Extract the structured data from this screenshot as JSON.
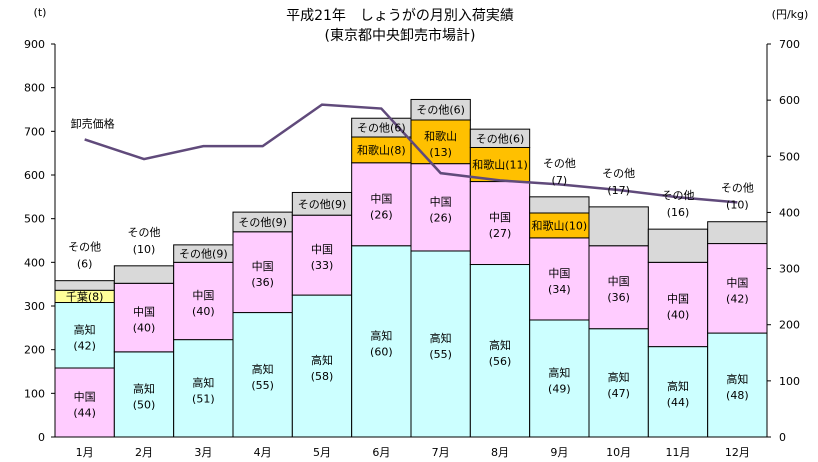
{
  "chart_data": {
    "type": "bar",
    "stacked": true,
    "title": "平成21年　しょうがの月別入荷実績",
    "subtitle": "(東京都中央卸売市場計)",
    "ylabel_left": "(t)",
    "ylabel_right": "(円/kg)",
    "ylim_left": [
      0,
      900
    ],
    "yticks_left": [
      0,
      100,
      200,
      300,
      400,
      500,
      600,
      700,
      800,
      900
    ],
    "ylim_right": [
      0,
      700
    ],
    "yticks_right": [
      0,
      100,
      200,
      300,
      400,
      500,
      600,
      700
    ],
    "categories": [
      "1月",
      "2月",
      "3月",
      "4月",
      "5月",
      "6月",
      "7月",
      "8月",
      "9月",
      "10月",
      "11月",
      "12月"
    ],
    "colors": {
      "高知": "#ccffff",
      "中国": "#ffccff",
      "千葉": "#ffff99",
      "和歌山": "#ffc000",
      "その他": "#d9d9d9",
      "line": "#604a7b"
    },
    "bars": [
      {
        "segments": [
          {
            "name": "中国",
            "value": 158,
            "pct": "(44)"
          },
          {
            "name": "高知",
            "value": 150,
            "pct": "(42)"
          },
          {
            "name": "千葉",
            "value": 28,
            "pct": "(8)"
          },
          {
            "name": "その他",
            "value": 22,
            "pct": "(6)"
          }
        ]
      },
      {
        "segments": [
          {
            "name": "高知",
            "value": 195,
            "pct": "(50)"
          },
          {
            "name": "中国",
            "value": 157,
            "pct": "(40)"
          },
          {
            "name": "その他",
            "value": 40,
            "pct": "(10)"
          }
        ]
      },
      {
        "segments": [
          {
            "name": "高知",
            "value": 223,
            "pct": "(51)"
          },
          {
            "name": "中国",
            "value": 177,
            "pct": "(40)"
          },
          {
            "name": "その他",
            "value": 40,
            "pct": "(9)"
          }
        ]
      },
      {
        "segments": [
          {
            "name": "高知",
            "value": 285,
            "pct": "(55)"
          },
          {
            "name": "中国",
            "value": 185,
            "pct": "(36)"
          },
          {
            "name": "その他",
            "value": 45,
            "pct": "(9)"
          }
        ]
      },
      {
        "segments": [
          {
            "name": "高知",
            "value": 325,
            "pct": "(58)"
          },
          {
            "name": "中国",
            "value": 183,
            "pct": "(33)"
          },
          {
            "name": "その他",
            "value": 52,
            "pct": "(9)"
          }
        ]
      },
      {
        "segments": [
          {
            "name": "高知",
            "value": 438,
            "pct": "(60)"
          },
          {
            "name": "中国",
            "value": 190,
            "pct": "(26)"
          },
          {
            "name": "和歌山",
            "value": 59,
            "pct": "(8)"
          },
          {
            "name": "その他",
            "value": 43,
            "pct": "(6)"
          }
        ]
      },
      {
        "segments": [
          {
            "name": "高知",
            "value": 426,
            "pct": "(55)"
          },
          {
            "name": "中国",
            "value": 200,
            "pct": "(26)"
          },
          {
            "name": "和歌山",
            "value": 100,
            "pct": "(13)"
          },
          {
            "name": "その他",
            "value": 47,
            "pct": "(6)"
          }
        ]
      },
      {
        "segments": [
          {
            "name": "高知",
            "value": 395,
            "pct": "(56)"
          },
          {
            "name": "中国",
            "value": 190,
            "pct": "(27)"
          },
          {
            "name": "和歌山",
            "value": 78,
            "pct": "(11)"
          },
          {
            "name": "その他",
            "value": 42,
            "pct": "(6)"
          }
        ]
      },
      {
        "segments": [
          {
            "name": "高知",
            "value": 268,
            "pct": "(49)"
          },
          {
            "name": "中国",
            "value": 188,
            "pct": "(34)"
          },
          {
            "name": "和歌山",
            "value": 57,
            "pct": "(10)"
          },
          {
            "name": "その他",
            "value": 37,
            "pct": "(7)"
          }
        ]
      },
      {
        "segments": [
          {
            "name": "高知",
            "value": 248,
            "pct": "(47)"
          },
          {
            "name": "中国",
            "value": 190,
            "pct": "(36)"
          },
          {
            "name": "その他",
            "value": 89,
            "pct": "(17)"
          }
        ]
      },
      {
        "segments": [
          {
            "name": "高知",
            "value": 207,
            "pct": "(44)"
          },
          {
            "name": "中国",
            "value": 193,
            "pct": "(40)"
          },
          {
            "name": "その他",
            "value": 76,
            "pct": "(16)"
          }
        ]
      },
      {
        "segments": [
          {
            "name": "高知",
            "value": 238,
            "pct": "(48)"
          },
          {
            "name": "中国",
            "value": 205,
            "pct": "(42)"
          },
          {
            "name": "その他",
            "value": 50,
            "pct": "(10)"
          }
        ]
      }
    ],
    "external_labels": {
      "0": {
        "name": "その他",
        "pct": "(6)"
      },
      "1": {
        "name": "その他",
        "pct": "(10)"
      },
      "8": {
        "name": "その他",
        "pct": "(7)"
      },
      "9": {
        "name": "その他",
        "pct": "(17)"
      },
      "10": {
        "name": "その他",
        "pct": "(16)"
      },
      "11": {
        "name": "その他",
        "pct": "(10)"
      }
    },
    "line_series": {
      "name": "卸売価格",
      "axis": "right",
      "values": [
        530,
        495,
        518,
        518,
        592,
        585,
        470,
        457,
        450,
        440,
        427,
        418
      ]
    }
  }
}
